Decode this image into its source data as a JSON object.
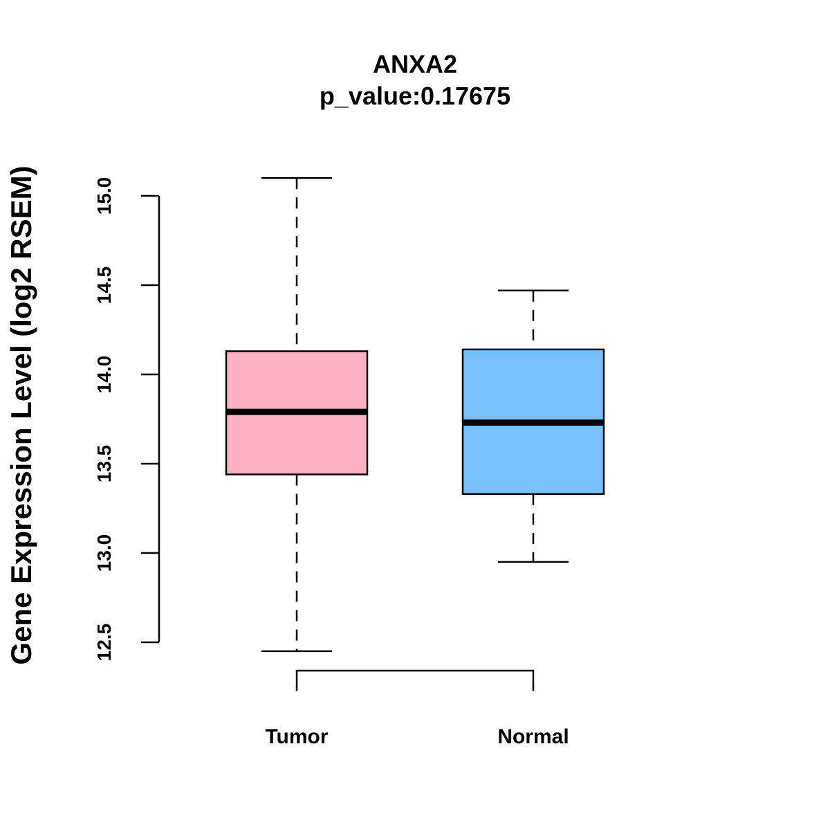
{
  "chart_data": {
    "type": "boxplot",
    "title": "ANXA2",
    "subtitle": "p_value:0.17675",
    "xlabel": "",
    "ylabel": "Gene Expression Level (log2 RSEM)",
    "ylim": [
      12.5,
      15.0
    ],
    "yticks": [
      12.5,
      13.0,
      13.5,
      14.0,
      14.5,
      15.0
    ],
    "ytick_labels": [
      "12.5",
      "13.0",
      "13.5",
      "14.0",
      "14.5",
      "15.0"
    ],
    "grid": false,
    "significance_bracket": true,
    "categories": [
      "Tumor",
      "Normal"
    ],
    "series": [
      {
        "name": "Tumor",
        "color": "#FDB1C3",
        "whisker_low": 12.45,
        "q1": 13.44,
        "median": 13.79,
        "q3": 14.13,
        "whisker_high": 15.1
      },
      {
        "name": "Normal",
        "color": "#77C1F8",
        "whisker_low": 12.95,
        "q1": 13.33,
        "median": 13.73,
        "q3": 14.14,
        "whisker_high": 14.47
      }
    ]
  }
}
